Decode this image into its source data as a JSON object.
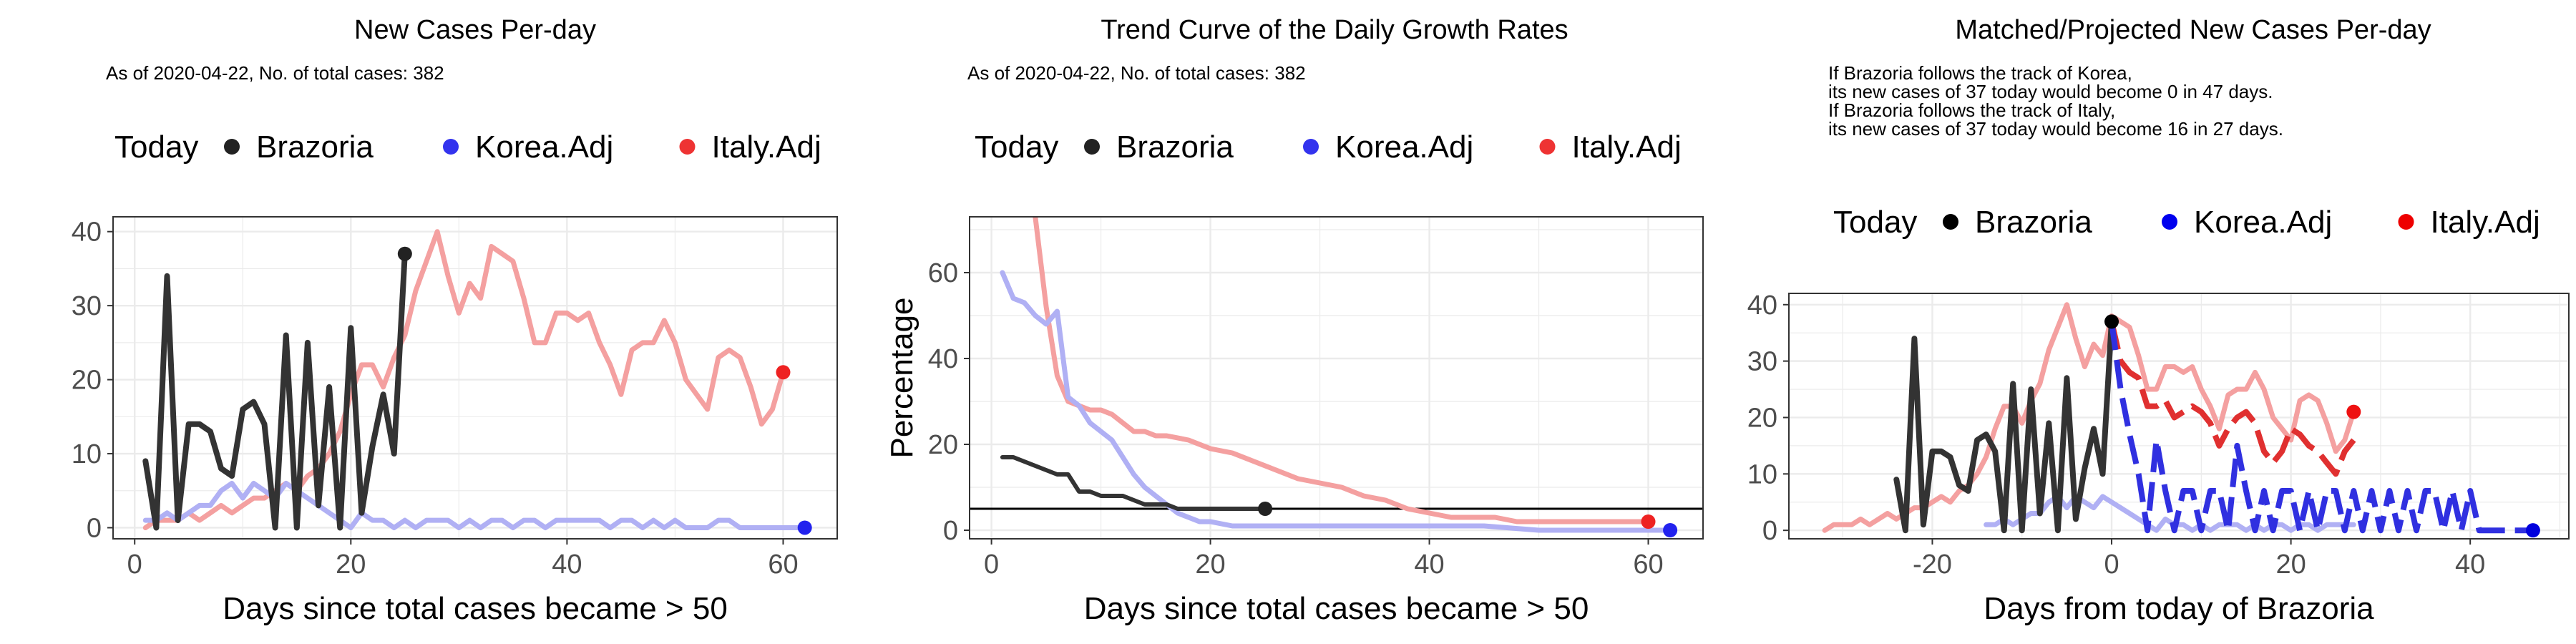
{
  "chart_data": [
    {
      "type": "line",
      "title": "New Cases Per-day",
      "subtitle": [
        "As of 2020-04-22, No. of total cases: 382"
      ],
      "xlabel": "Days since total cases became > 50",
      "ylabel": "",
      "xlim": [
        -2,
        65
      ],
      "ylim": [
        -1.5,
        42
      ],
      "xticks": [
        0,
        20,
        40,
        60
      ],
      "yticks": [
        0,
        10,
        20,
        30,
        40
      ],
      "grid": true,
      "legend": {
        "position": "top",
        "title": "Today",
        "entries": [
          {
            "label": "Brazoria",
            "color": "#222222"
          },
          {
            "label": "Korea.Adj",
            "color": "#3333ee"
          },
          {
            "label": "Italy.Adj",
            "color": "#ee3333"
          }
        ]
      },
      "series": [
        {
          "name": "Italy.Adj",
          "color": "#f4a0a0",
          "width": 7,
          "x": [
            1,
            2,
            3,
            4,
            5,
            6,
            7,
            8,
            9,
            10,
            11,
            12,
            13,
            14,
            15,
            16,
            17,
            18,
            19,
            20,
            21,
            22,
            23,
            24,
            25,
            26,
            27,
            28,
            29,
            30,
            31,
            32,
            33,
            34,
            35,
            36,
            37,
            38,
            39,
            40,
            41,
            42,
            43,
            44,
            45,
            46,
            47,
            48,
            49,
            50,
            51,
            52,
            53,
            54,
            55,
            56,
            57,
            58,
            59,
            60
          ],
          "y": [
            0,
            1,
            1,
            1,
            2,
            1,
            2,
            3,
            2,
            3,
            4,
            4,
            5,
            6,
            5,
            7,
            8,
            10,
            13,
            18,
            22,
            22,
            19,
            23,
            26,
            32,
            36,
            40,
            34,
            29,
            33,
            31,
            38,
            37,
            36,
            31,
            25,
            25,
            29,
            29,
            28,
            29,
            25,
            22,
            18,
            24,
            25,
            25,
            28,
            25,
            20,
            18,
            16,
            23,
            24,
            23,
            19,
            14,
            16,
            21
          ]
        },
        {
          "name": "Korea.Adj",
          "color": "#b0b0f4",
          "width": 7,
          "x": [
            1,
            2,
            3,
            4,
            5,
            6,
            7,
            8,
            9,
            10,
            11,
            12,
            13,
            14,
            15,
            16,
            17,
            18,
            19,
            20,
            21,
            22,
            23,
            24,
            25,
            26,
            27,
            28,
            29,
            30,
            31,
            32,
            33,
            34,
            35,
            36,
            37,
            38,
            39,
            40,
            41,
            42,
            43,
            44,
            45,
            46,
            47,
            48,
            49,
            50,
            51,
            52,
            53,
            54,
            55,
            56,
            57,
            58,
            59,
            60,
            61,
            62
          ],
          "y": [
            1,
            1,
            2,
            1,
            2,
            3,
            3,
            5,
            6,
            4,
            6,
            5,
            4,
            6,
            5,
            4,
            3,
            2,
            1,
            0,
            2,
            1,
            1,
            0,
            1,
            0,
            1,
            1,
            1,
            0,
            1,
            0,
            1,
            1,
            0,
            1,
            1,
            0,
            1,
            1,
            1,
            1,
            1,
            0,
            1,
            1,
            0,
            1,
            0,
            1,
            0,
            0,
            0,
            1,
            1,
            0,
            0,
            0,
            0,
            0,
            0,
            0
          ]
        },
        {
          "name": "Brazoria",
          "color": "#333333",
          "width": 8,
          "x": [
            1,
            2,
            3,
            4,
            5,
            6,
            7,
            8,
            9,
            10,
            11,
            12,
            13,
            14,
            15,
            16,
            17,
            18,
            19,
            20,
            21,
            22,
            23,
            24,
            25
          ],
          "y": [
            9,
            0,
            34,
            1,
            14,
            14,
            13,
            8,
            7,
            16,
            17,
            14,
            0,
            26,
            0,
            25,
            3,
            19,
            0,
            27,
            2,
            11,
            18,
            10,
            37
          ]
        }
      ],
      "today_points": [
        {
          "series": "Brazoria",
          "x": 25,
          "y": 37,
          "color": "#222222"
        },
        {
          "series": "Korea.Adj",
          "x": 62,
          "y": 0,
          "color": "#2222ee"
        },
        {
          "series": "Italy.Adj",
          "x": 60,
          "y": 21,
          "color": "#ee2222"
        }
      ]
    },
    {
      "type": "line",
      "title": "Trend Curve of the Daily Growth Rates",
      "subtitle": [
        "As of 2020-04-22, No. of total cases: 382"
      ],
      "xlabel": "Days since total cases became > 50",
      "ylabel": "Percentage",
      "xlim": [
        -2,
        65
      ],
      "ylim": [
        -2,
        73
      ],
      "xticks": [
        0,
        20,
        40,
        60
      ],
      "yticks": [
        0,
        20,
        40,
        60
      ],
      "grid": true,
      "reference_line_y": 5,
      "legend": {
        "position": "top",
        "title": "Today",
        "entries": [
          {
            "label": "Brazoria",
            "color": "#222222"
          },
          {
            "label": "Korea.Adj",
            "color": "#3333ee"
          },
          {
            "label": "Italy.Adj",
            "color": "#ee3333"
          }
        ]
      },
      "series": [
        {
          "name": "Italy.Adj",
          "color": "#f4a0a0",
          "width": 7,
          "x": [
            4,
            5,
            6,
            7,
            8,
            9,
            10,
            11,
            12,
            13,
            14,
            15,
            16,
            18,
            20,
            22,
            24,
            26,
            28,
            30,
            32,
            34,
            36,
            38,
            40,
            42,
            44,
            46,
            48,
            50,
            52,
            54,
            56,
            58,
            60
          ],
          "y": [
            73,
            52,
            36,
            30,
            29,
            28,
            28,
            27,
            25,
            23,
            23,
            22,
            22,
            21,
            19,
            18,
            16,
            14,
            12,
            11,
            10,
            8,
            7,
            5,
            4,
            3,
            3,
            3,
            2,
            2,
            2,
            2,
            2,
            2,
            2
          ]
        },
        {
          "name": "Korea.Adj",
          "color": "#b0b0f4",
          "width": 7,
          "x": [
            1,
            2,
            3,
            4,
            5,
            6,
            7,
            8,
            9,
            10,
            11,
            12,
            13,
            14,
            15,
            16,
            17,
            18,
            19,
            20,
            22,
            24,
            26,
            28,
            30,
            35,
            40,
            45,
            50,
            55,
            60,
            62
          ],
          "y": [
            60,
            54,
            53,
            50,
            48,
            51,
            31,
            29,
            25,
            23,
            21,
            17,
            13,
            10,
            8,
            6,
            4,
            3,
            2,
            2,
            1,
            1,
            1,
            1,
            1,
            1,
            1,
            1,
            0,
            0,
            0,
            0
          ]
        },
        {
          "name": "Brazoria",
          "color": "#333333",
          "width": 6,
          "x": [
            1,
            2,
            3,
            4,
            5,
            6,
            7,
            8,
            9,
            10,
            11,
            12,
            13,
            14,
            15,
            16,
            17,
            18,
            19,
            20,
            21,
            22,
            23,
            24,
            25
          ],
          "y": [
            17,
            17,
            16,
            15,
            14,
            13,
            13,
            9,
            9,
            8,
            8,
            8,
            7,
            6,
            6,
            6,
            5,
            5,
            5,
            5,
            5,
            5,
            5,
            5,
            5
          ]
        }
      ],
      "today_points": [
        {
          "series": "Brazoria",
          "x": 25,
          "y": 5,
          "color": "#222222"
        },
        {
          "series": "Korea.Adj",
          "x": 62,
          "y": 0,
          "color": "#2222ee"
        },
        {
          "series": "Italy.Adj",
          "x": 60,
          "y": 2,
          "color": "#ee2222"
        }
      ]
    },
    {
      "type": "line",
      "title": "Matched/Projected New Cases Per-day",
      "subtitle": [
        "If Brazoria follows the track of Korea,",
        "its new cases of 37 today would become 0 in 47 days.",
        "If Brazoria follows the track of Italy,",
        "its new cases of 37 today would become 16 in 27 days."
      ],
      "xlabel": "Days from today of Brazoria",
      "ylabel": "",
      "xlim": [
        -36,
        51
      ],
      "ylim": [
        -1.5,
        42
      ],
      "xticks": [
        -20,
        0,
        20,
        40
      ],
      "yticks": [
        0,
        10,
        20,
        30,
        40
      ],
      "grid": true,
      "legend": {
        "position": "top",
        "title": "Today",
        "entries": [
          {
            "label": "Brazoria",
            "color": "#000000"
          },
          {
            "label": "Korea.Adj",
            "color": "#0000ee"
          },
          {
            "label": "Italy.Adj",
            "color": "#ee0000"
          }
        ]
      },
      "series": [
        {
          "name": "Italy.Adj (matched)",
          "color": "#f4a0a0",
          "width": 7,
          "x": [
            -32,
            -31,
            -30,
            -29,
            -28,
            -27,
            -26,
            -25,
            -24,
            -23,
            -22,
            -21,
            -20,
            -19,
            -18,
            -17,
            -16,
            -15,
            -14,
            -13,
            -12,
            -11,
            -10,
            -9,
            -8,
            -7,
            -6,
            -5,
            -4,
            -3,
            -2,
            -1,
            0,
            1,
            2,
            3,
            4,
            5,
            6,
            7,
            8,
            9,
            10,
            11,
            12,
            13,
            14,
            15,
            16,
            17,
            18,
            19,
            20,
            21,
            22,
            23,
            24,
            25,
            26,
            27
          ],
          "y": [
            0,
            1,
            1,
            1,
            2,
            1,
            2,
            3,
            2,
            3,
            4,
            4,
            5,
            6,
            5,
            7,
            8,
            10,
            13,
            18,
            22,
            22,
            19,
            23,
            26,
            32,
            36,
            40,
            34,
            29,
            33,
            31,
            38,
            37,
            36,
            31,
            25,
            25,
            29,
            29,
            28,
            29,
            25,
            22,
            18,
            24,
            25,
            25,
            28,
            25,
            20,
            18,
            16,
            23,
            24,
            23,
            19,
            14,
            16,
            21
          ]
        },
        {
          "name": "Korea.Adj (matched)",
          "color": "#b0b0f4",
          "width": 7,
          "x": [
            -14,
            -13,
            -12,
            -11,
            -10,
            -9,
            -8,
            -7,
            -6,
            -5,
            -4,
            -3,
            -2,
            -1,
            0,
            1,
            2,
            3,
            4,
            5,
            6,
            7,
            8,
            9,
            10,
            11,
            12,
            13,
            14,
            15,
            16,
            17,
            18,
            19,
            20,
            21,
            22,
            23,
            24,
            25,
            26,
            27
          ],
          "y": [
            1,
            1,
            2,
            1,
            2,
            3,
            3,
            5,
            6,
            4,
            6,
            5,
            4,
            6,
            5,
            4,
            3,
            2,
            1,
            0,
            2,
            1,
            1,
            0,
            1,
            0,
            1,
            1,
            1,
            0,
            1,
            0,
            1,
            1,
            0,
            1,
            1,
            0,
            1,
            1,
            1,
            1
          ]
        },
        {
          "name": "Brazoria",
          "color": "#333333",
          "width": 8,
          "x": [
            -24,
            -23,
            -22,
            -21,
            -20,
            -19,
            -18,
            -17,
            -16,
            -15,
            -14,
            -13,
            -12,
            -11,
            -10,
            -9,
            -8,
            -7,
            -6,
            -5,
            -4,
            -3,
            -2,
            -1,
            0
          ],
          "y": [
            9,
            0,
            34,
            1,
            14,
            14,
            13,
            8,
            7,
            16,
            17,
            14,
            0,
            26,
            0,
            25,
            3,
            19,
            0,
            27,
            2,
            11,
            18,
            10,
            37
          ]
        },
        {
          "name": "Italy.Adj (projected)",
          "color": "#e03030",
          "width": 8,
          "dash": true,
          "x": [
            0,
            1,
            2,
            3,
            4,
            5,
            6,
            7,
            8,
            9,
            10,
            11,
            12,
            13,
            14,
            15,
            16,
            17,
            18,
            19,
            20,
            21,
            22,
            23,
            24,
            25,
            26,
            27
          ],
          "y": [
            37,
            30,
            28,
            27,
            22,
            22,
            23,
            20,
            21,
            22,
            21,
            19,
            15,
            18,
            20,
            21,
            19,
            14,
            12,
            14,
            18,
            17,
            15,
            14,
            12,
            10,
            14,
            16
          ]
        },
        {
          "name": "Korea.Adj (projected)",
          "color": "#3030e0",
          "width": 8,
          "dash": true,
          "x": [
            0,
            1,
            2,
            3,
            4,
            5,
            6,
            7,
            8,
            9,
            10,
            11,
            12,
            13,
            14,
            15,
            16,
            17,
            18,
            19,
            20,
            21,
            22,
            23,
            24,
            25,
            26,
            27,
            28,
            29,
            30,
            31,
            32,
            33,
            34,
            35,
            36,
            37,
            38,
            39,
            40,
            41,
            42,
            43,
            44,
            45,
            46,
            47
          ],
          "y": [
            37,
            25,
            17,
            10,
            0,
            16,
            7,
            0,
            7,
            7,
            0,
            7,
            7,
            0,
            15,
            7,
            0,
            7,
            0,
            7,
            7,
            0,
            7,
            0,
            7,
            7,
            0,
            7,
            0,
            7,
            0,
            7,
            0,
            7,
            0,
            7,
            7,
            0,
            7,
            0,
            7,
            0,
            0,
            0,
            0,
            0,
            0,
            0
          ]
        }
      ],
      "today_points": [
        {
          "series": "Brazoria",
          "x": 0,
          "y": 37,
          "color": "#000000"
        },
        {
          "series": "Korea.Adj",
          "x": 47,
          "y": 0,
          "color": "#0000dd"
        },
        {
          "series": "Italy.Adj",
          "x": 27,
          "y": 21,
          "color": "#ee1111"
        }
      ]
    }
  ]
}
